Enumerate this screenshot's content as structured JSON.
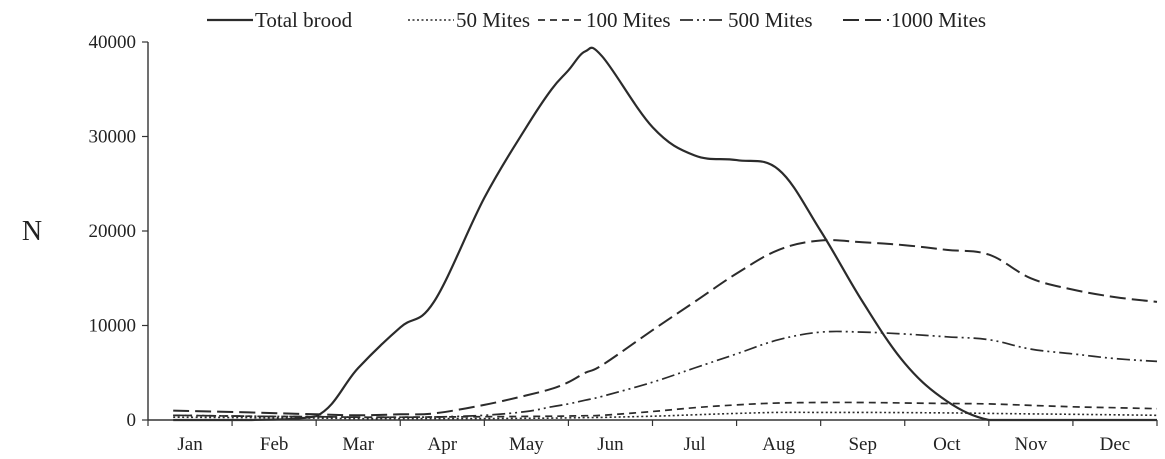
{
  "chart_data": {
    "type": "line",
    "title": "",
    "xlabel": "",
    "ylabel": "N",
    "ylim": [
      0,
      40000
    ],
    "yticks": [
      0,
      10000,
      20000,
      30000,
      40000
    ],
    "categories": [
      "Jan",
      "Feb",
      "Mar",
      "Apr",
      "May",
      "Jun",
      "Jul",
      "Aug",
      "Sep",
      "Oct",
      "Nov",
      "Dec"
    ],
    "x": [
      0.3,
      1.2,
      2.0,
      2.5,
      3.0,
      3.4,
      4.0,
      4.5,
      4.8,
      5.0,
      5.2,
      5.4,
      6.0,
      6.5,
      7.0,
      7.5,
      8.0,
      8.5,
      9.0,
      9.5,
      10.0,
      10.5,
      11.0,
      11.5,
      12.0
    ],
    "grid": false,
    "legend_position": "top",
    "series": [
      {
        "name": "Total brood",
        "style": "solid",
        "values": [
          0,
          0,
          400,
          5500,
          9800,
          12500,
          23500,
          31000,
          35000,
          37000,
          39000,
          38500,
          31000,
          28000,
          27500,
          26500,
          20000,
          12500,
          6000,
          2000,
          0,
          0,
          0,
          0,
          0
        ]
      },
      {
        "name": "50 Mites",
        "style": "dotted",
        "values": [
          300,
          250,
          200,
          150,
          150,
          150,
          150,
          180,
          200,
          220,
          250,
          280,
          400,
          550,
          700,
          800,
          800,
          800,
          780,
          750,
          700,
          650,
          600,
          550,
          500
        ]
      },
      {
        "name": "100 Mites",
        "style": "dashed-short",
        "values": [
          500,
          400,
          350,
          300,
          300,
          320,
          350,
          380,
          400,
          420,
          450,
          500,
          900,
          1300,
          1600,
          1800,
          1850,
          1850,
          1800,
          1750,
          1700,
          1550,
          1400,
          1300,
          1200
        ]
      },
      {
        "name": "500 Mites",
        "style": "dash-dot-dot",
        "values": [
          500,
          400,
          350,
          300,
          300,
          320,
          500,
          900,
          1400,
          1700,
          2100,
          2500,
          4000,
          5500,
          7000,
          8500,
          9300,
          9300,
          9100,
          8800,
          8500,
          7500,
          7000,
          6500,
          6200
        ]
      },
      {
        "name": "1000 Mites",
        "style": "dashed-long",
        "values": [
          1000,
          800,
          600,
          500,
          600,
          700,
          1600,
          2600,
          3300,
          4000,
          5000,
          5800,
          9500,
          12500,
          15500,
          18000,
          19000,
          18800,
          18500,
          18000,
          17500,
          15000,
          13800,
          13000,
          12500
        ]
      }
    ]
  }
}
